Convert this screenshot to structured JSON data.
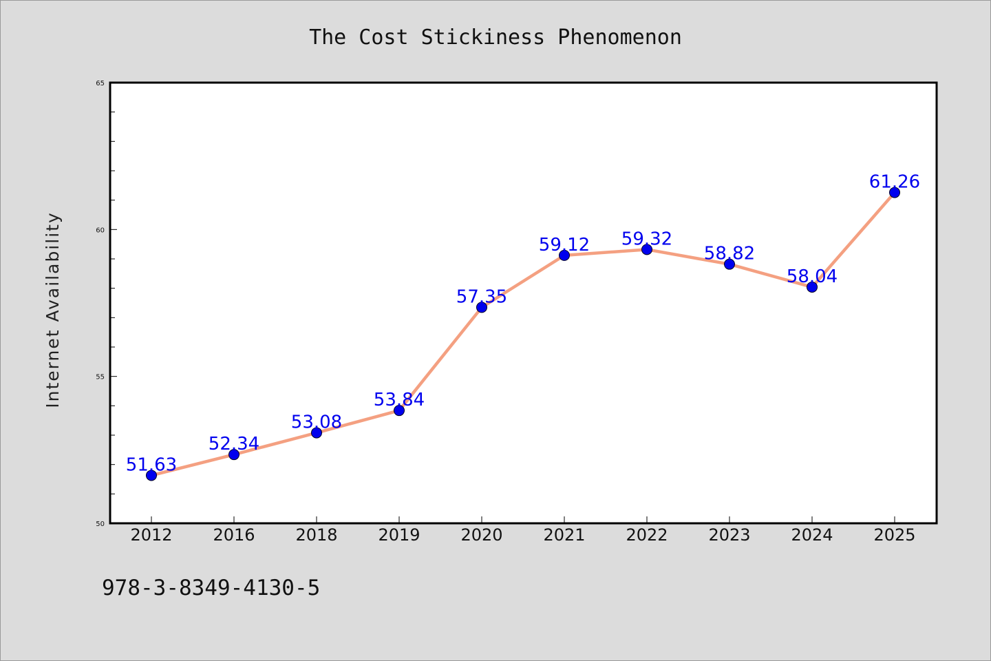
{
  "chart_data": {
    "type": "line",
    "title": "The Cost Stickiness Phenomenon",
    "xlabel": "",
    "ylabel": "Internet Availability",
    "categories": [
      "2012",
      "2016",
      "2018",
      "2019",
      "2020",
      "2021",
      "2022",
      "2023",
      "2024",
      "2025"
    ],
    "values": [
      51.63,
      52.34,
      53.08,
      53.84,
      57.35,
      59.12,
      59.32,
      58.82,
      58.04,
      61.26
    ],
    "data_labels": [
      "51.63",
      "52.34",
      "53.08",
      "53.84",
      "57.35",
      "59.12",
      "59.32",
      "58.82",
      "58.04",
      "61.26"
    ],
    "ylim": [
      50,
      65
    ],
    "yticks": [
      50,
      55,
      60,
      65
    ],
    "ytick_labels": [
      "50",
      "55",
      "60",
      "65"
    ],
    "grid": false,
    "legend": "none",
    "colors": {
      "line": "#f4a081",
      "marker": "#0000ee",
      "label": "#0000ee",
      "background": "#dcdcdc",
      "plot_background": "#ffffff"
    }
  },
  "footer": {
    "isbn": "978-3-8349-4130-5"
  }
}
